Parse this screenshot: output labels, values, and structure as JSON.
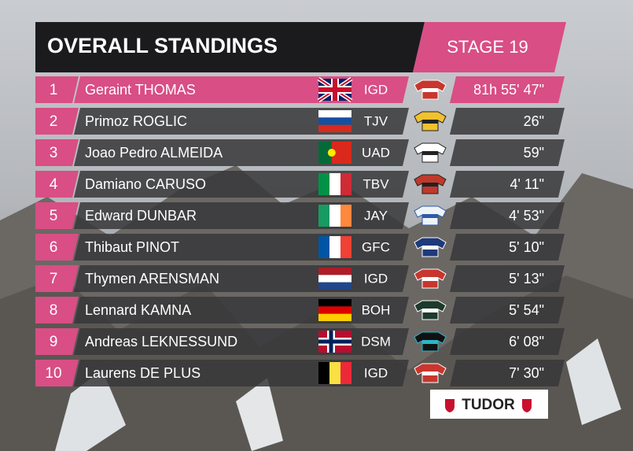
{
  "header": {
    "title": "OVERALL STANDINGS",
    "stage": "STAGE 19"
  },
  "table": {
    "rows": [
      {
        "rank": 1,
        "name": "Geraint THOMAS",
        "team": "IGD",
        "time": "81h 55' 47\""
      },
      {
        "rank": 2,
        "name": "Primoz ROGLIC",
        "team": "TJV",
        "time": "26\""
      },
      {
        "rank": 3,
        "name": "Joao Pedro ALMEIDA",
        "team": "UAD",
        "time": "59\""
      },
      {
        "rank": 4,
        "name": "Damiano CARUSO",
        "team": "TBV",
        "time": "4' 11\""
      },
      {
        "rank": 5,
        "name": "Edward DUNBAR",
        "team": "JAY",
        "time": "4' 53\""
      },
      {
        "rank": 6,
        "name": "Thibaut PINOT",
        "team": "GFC",
        "time": "5' 10\""
      },
      {
        "rank": 7,
        "name": "Thymen ARENSMAN",
        "team": "IGD",
        "time": "5' 13\""
      },
      {
        "rank": 8,
        "name": "Lennard KAMNA",
        "team": "BOH",
        "time": "5' 54\""
      },
      {
        "rank": 9,
        "name": "Andreas LEKNESSUND",
        "team": "DSM",
        "time": "6' 08\""
      },
      {
        "rank": 10,
        "name": "Laurens DE PLUS",
        "team": "IGD",
        "time": "7' 30\""
      }
    ]
  },
  "sponsor": "TUDOR"
}
